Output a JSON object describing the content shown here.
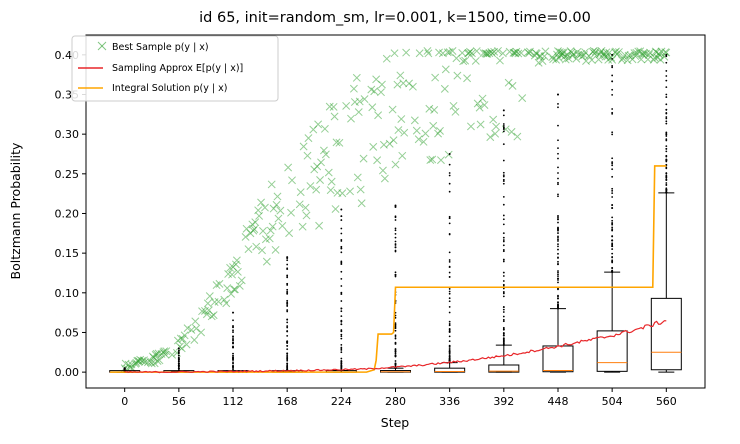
{
  "chart_data": {
    "type": "scatter",
    "title": "id 65, init=random_sm, lr=0.001, k=1500, time=0.00",
    "xlabel": "Step",
    "ylabel": "Boltzmann Probability",
    "xlim": [
      -40,
      600
    ],
    "ylim": [
      -0.02,
      0.425
    ],
    "xticks": [
      0,
      56,
      112,
      168,
      224,
      280,
      336,
      392,
      448,
      504,
      560
    ],
    "yticks": [
      0.0,
      0.05,
      0.1,
      0.15,
      0.2,
      0.25,
      0.3,
      0.35,
      0.4
    ],
    "ytick_labels": [
      "0.00",
      "0.05",
      "0.10",
      "0.15",
      "0.20",
      "0.25",
      "0.30",
      "0.35",
      "0.40"
    ],
    "grid": false,
    "legend": {
      "position": "top-left",
      "entries": [
        {
          "label": "Best Sample p(y | x)",
          "color": "#2ca02c",
          "marker": "x"
        },
        {
          "label": "Sampling Approx E[p(y | x)]",
          "color": "#e8272a",
          "marker": "line"
        },
        {
          "label": "Integral Solution p(y | x)",
          "color": "#ffa500",
          "marker": "line"
        }
      ]
    },
    "series": [
      {
        "name": "Best Sample p(y | x)",
        "kind": "scatter",
        "color": "#2ca02c",
        "trend": [
          [
            0,
            0.005
          ],
          [
            20,
            0.012
          ],
          [
            40,
            0.02
          ],
          [
            60,
            0.035
          ],
          [
            80,
            0.07
          ],
          [
            100,
            0.1
          ],
          [
            120,
            0.14
          ],
          [
            140,
            0.18
          ],
          [
            160,
            0.2
          ],
          [
            180,
            0.22
          ],
          [
            200,
            0.25
          ],
          [
            220,
            0.27
          ],
          [
            240,
            0.29
          ],
          [
            260,
            0.31
          ],
          [
            280,
            0.33
          ],
          [
            300,
            0.35
          ],
          [
            320,
            0.36
          ],
          [
            340,
            0.375
          ],
          [
            360,
            0.385
          ],
          [
            380,
            0.39
          ],
          [
            400,
            0.395
          ],
          [
            420,
            0.397
          ],
          [
            440,
            0.398
          ],
          [
            460,
            0.399
          ],
          [
            480,
            0.4
          ],
          [
            500,
            0.4
          ],
          [
            520,
            0.401
          ],
          [
            540,
            0.401
          ],
          [
            560,
            0.401
          ]
        ]
      },
      {
        "name": "Sampling Approx E[p(y | x)]",
        "kind": "line",
        "color": "#e8272a",
        "points": [
          [
            0,
            0.0
          ],
          [
            50,
            0.0002
          ],
          [
            100,
            0.0008
          ],
          [
            150,
            0.0015
          ],
          [
            200,
            0.0025
          ],
          [
            250,
            0.004
          ],
          [
            300,
            0.008
          ],
          [
            350,
            0.014
          ],
          [
            400,
            0.022
          ],
          [
            450,
            0.033
          ],
          [
            500,
            0.045
          ],
          [
            530,
            0.054
          ],
          [
            560,
            0.065
          ]
        ]
      },
      {
        "name": "Integral Solution p(y | x)",
        "kind": "line",
        "color": "#ffa500",
        "points": [
          [
            -15,
            0.0
          ],
          [
            200,
            0.0
          ],
          [
            250,
            0.0
          ],
          [
            258,
            0.003
          ],
          [
            260,
            0.015
          ],
          [
            262,
            0.048
          ],
          [
            276,
            0.048
          ],
          [
            278,
            0.05
          ],
          [
            280,
            0.107
          ],
          [
            430,
            0.107
          ],
          [
            546,
            0.107
          ],
          [
            548,
            0.26
          ],
          [
            560,
            0.26
          ]
        ]
      }
    ],
    "boxplots": [
      {
        "x": 0,
        "q1": 0.0,
        "median": 0.0,
        "q3": 0.0,
        "whisker_low": 0.0,
        "whisker_high": 0.0,
        "flier_max": 0.005
      },
      {
        "x": 56,
        "q1": 0.0,
        "median": 0.0,
        "q3": 0.0005,
        "whisker_low": 0.0,
        "whisker_high": 0.0008,
        "flier_max": 0.03
      },
      {
        "x": 112,
        "q1": 0.0,
        "median": 0.0,
        "q3": 0.0005,
        "whisker_low": 0.0,
        "whisker_high": 0.001,
        "flier_max": 0.075
      },
      {
        "x": 168,
        "q1": 0.0,
        "median": 0.0,
        "q3": 0.0008,
        "whisker_low": 0.0,
        "whisker_high": 0.0015,
        "flier_max": 0.145
      },
      {
        "x": 224,
        "q1": 0.0,
        "median": 0.0,
        "q3": 0.0012,
        "whisker_low": 0.0,
        "whisker_high": 0.002,
        "flier_max": 0.205
      },
      {
        "x": 280,
        "q1": 0.0,
        "median": 0.0005,
        "q3": 0.002,
        "whisker_low": 0.0,
        "whisker_high": 0.005,
        "flier_max": 0.21
      },
      {
        "x": 336,
        "q1": 0.0,
        "median": 0.0008,
        "q3": 0.005,
        "whisker_low": 0.0,
        "whisker_high": 0.012,
        "flier_max": 0.275
      },
      {
        "x": 392,
        "q1": 0.0,
        "median": 0.0012,
        "q3": 0.009,
        "whisker_low": 0.0,
        "whisker_high": 0.034,
        "flier_max": 0.33
      },
      {
        "x": 448,
        "q1": 0.0005,
        "median": 0.002,
        "q3": 0.033,
        "whisker_low": 0.0,
        "whisker_high": 0.08,
        "flier_max": 0.35
      },
      {
        "x": 504,
        "q1": 0.001,
        "median": 0.012,
        "q3": 0.052,
        "whisker_low": 0.0,
        "whisker_high": 0.126,
        "flier_max": 0.4
      },
      {
        "x": 560,
        "q1": 0.003,
        "median": 0.025,
        "q3": 0.093,
        "whisker_low": 0.0,
        "whisker_high": 0.226,
        "flier_max": 0.4
      }
    ]
  }
}
